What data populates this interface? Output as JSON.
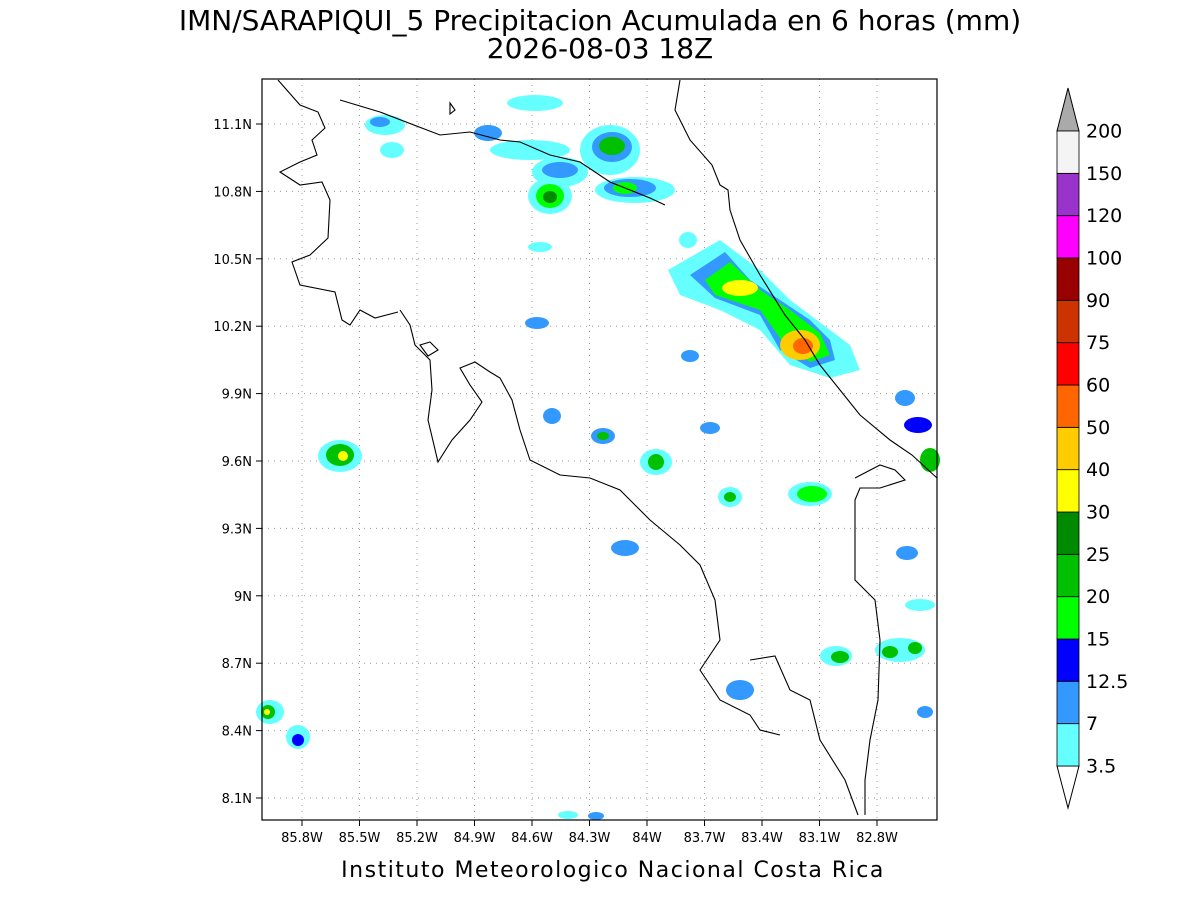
{
  "title": "IMN/SARAPIQUI_5 Precipitacion Acumulada en 6 horas (mm)",
  "subtitle": "2026-08-03 18Z",
  "footer": "Instituto Meteorologico Nacional Costa Rica",
  "map": {
    "lat_ticks": [
      "11.1N",
      "10.8N",
      "10.5N",
      "10.2N",
      "9.9N",
      "9.6N",
      "9.3N",
      "9N",
      "8.7N",
      "8.4N",
      "8.1N"
    ],
    "lon_ticks": [
      "85.8W",
      "85.5W",
      "85.2W",
      "84.9W",
      "84.6W",
      "84.3W",
      "84W",
      "83.7W",
      "83.4W",
      "83.1W",
      "82.8W"
    ]
  },
  "colorbar": {
    "levels": [
      3.5,
      7,
      12.5,
      15,
      20,
      25,
      30,
      40,
      50,
      60,
      75,
      90,
      100,
      120,
      150,
      200
    ],
    "colors": [
      "#66ffff",
      "#3399ff",
      "#0000ff",
      "#00ff00",
      "#00c000",
      "#008a00",
      "#ffff00",
      "#ffcc00",
      "#ff6600",
      "#ff0000",
      "#cc3300",
      "#990000",
      "#ff00ff",
      "#9933cc",
      "#f4f4f4"
    ],
    "over_color": "#aaaaaa",
    "under_color": "#ffffff"
  }
}
